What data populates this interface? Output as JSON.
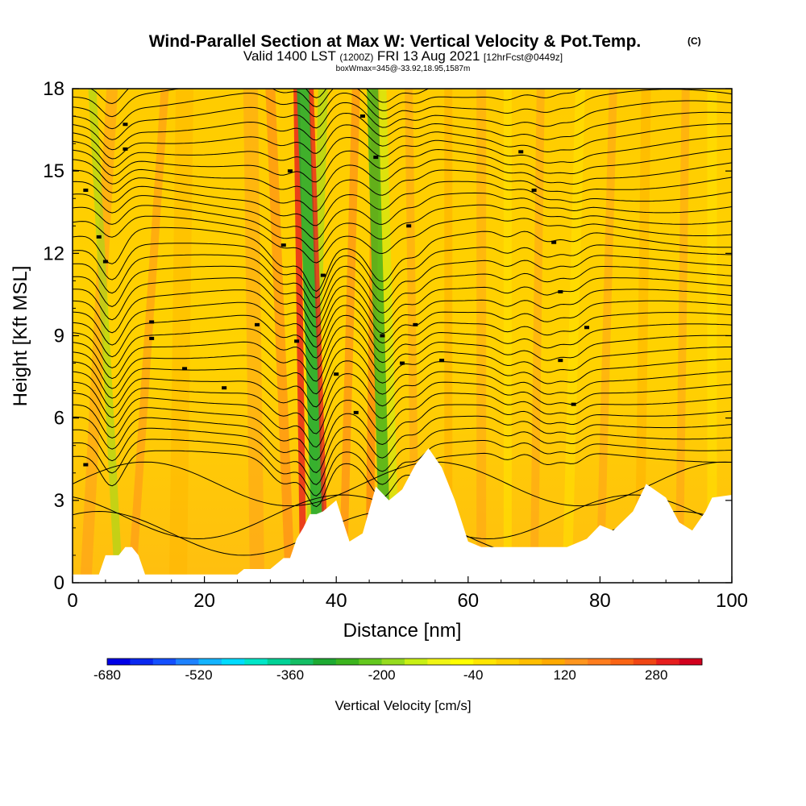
{
  "chart_data": {
    "type": "heatmap",
    "title": "Wind-Parallel Section at Max W: Vertical Velocity & Pot.Temp.",
    "title_mark": "(C)",
    "subtitle_main": "Valid 1400 LST",
    "subtitle_utc": "(1200Z)",
    "subtitle_date": "FRI 13 Aug 2021",
    "subtitle_fcst": "[12hrFcst@0449z]",
    "box_info": "boxWmax=345@-33.92,18.95,1587m",
    "xlabel": "Distance [nm]",
    "ylabel": "Height [Kft MSL]",
    "xlim": [
      0,
      100
    ],
    "ylim": [
      0,
      18
    ],
    "x_ticks": [
      "0",
      "20",
      "40",
      "60",
      "80",
      "100"
    ],
    "y_ticks": [
      "0",
      "3",
      "6",
      "9",
      "12",
      "15",
      "18"
    ],
    "colorbar": {
      "label": "Vertical Velocity [cm/s]",
      "ticks": [
        "-680",
        "-520",
        "-360",
        "-200",
        "-40",
        "120",
        "280"
      ],
      "colors": [
        "#0000e6",
        "#0a28f0",
        "#1450ff",
        "#1e82ff",
        "#14b4ff",
        "#00dcff",
        "#00e6c8",
        "#00d296",
        "#14be64",
        "#1eaa32",
        "#3cb41e",
        "#64c81e",
        "#96dc1e",
        "#c8f014",
        "#f0f514",
        "#ffff00",
        "#ffe600",
        "#ffd200",
        "#ffbe00",
        "#ffaa00",
        "#ff961e",
        "#ff7d1e",
        "#fa6414",
        "#f04614",
        "#e61e1e",
        "#d2001e"
      ]
    },
    "terrain": [
      [
        0,
        0.3
      ],
      [
        4,
        0.3
      ],
      [
        5,
        1
      ],
      [
        7,
        1
      ],
      [
        8,
        1.3
      ],
      [
        9,
        1.3
      ],
      [
        10,
        1
      ],
      [
        11,
        0.3
      ],
      [
        25,
        0.3
      ],
      [
        26,
        0.5
      ],
      [
        30,
        0.5
      ],
      [
        32,
        0.9
      ],
      [
        33,
        0.9
      ],
      [
        34,
        1.6
      ],
      [
        35,
        2
      ],
      [
        36,
        2.5
      ],
      [
        37,
        2.5
      ],
      [
        38,
        2.6
      ],
      [
        40,
        3
      ],
      [
        42,
        1.5
      ],
      [
        44,
        1.8
      ],
      [
        46,
        3.5
      ],
      [
        48,
        3
      ],
      [
        50,
        3.4
      ],
      [
        52,
        4.3
      ],
      [
        54,
        4.9
      ],
      [
        56,
        4.2
      ],
      [
        58,
        3
      ],
      [
        60,
        1.5
      ],
      [
        62,
        1.3
      ],
      [
        75,
        1.3
      ],
      [
        78,
        1.6
      ],
      [
        80,
        2.1
      ],
      [
        82,
        1.9
      ],
      [
        85,
        2.6
      ],
      [
        87,
        3.6
      ],
      [
        90,
        3.1
      ],
      [
        92,
        2.2
      ],
      [
        94,
        1.9
      ],
      [
        96,
        2.6
      ],
      [
        97,
        3.1
      ],
      [
        100,
        3.2
      ]
    ],
    "max_w_cm_s": 345
  }
}
